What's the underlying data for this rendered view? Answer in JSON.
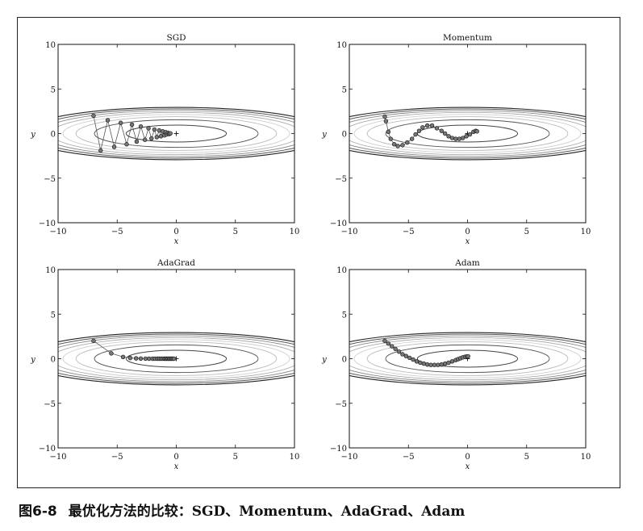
{
  "figure": {
    "number": "图6-8",
    "caption": "最优化方法的比较：SGD、Momentum、AdaGrad、Adam"
  },
  "chart_data": [
    {
      "type": "line",
      "title": "SGD",
      "xlabel": "x",
      "ylabel": "y",
      "xlim": [
        -10,
        10
      ],
      "ylim": [
        -10,
        10
      ],
      "xticks": [
        "−10",
        "−5",
        "0",
        "5",
        "10"
      ],
      "yticks": [
        "10",
        "5",
        "0",
        "−5",
        "−10"
      ],
      "grid": false,
      "contour": "f(x,y)=x^2/20+y^2, minimum at (0,0)",
      "marker": "+",
      "series": [
        {
          "x": [
            -7.0,
            -6.4,
            -5.8,
            -5.25,
            -4.7,
            -4.2,
            -3.75,
            -3.35,
            -3.0,
            -2.65,
            -2.35,
            -2.1,
            -1.85,
            -1.65,
            -1.45,
            -1.3,
            -1.15,
            -1.0,
            -0.9,
            -0.8,
            -0.7,
            -0.6,
            -0.5
          ],
          "y": [
            2.0,
            -1.9,
            1.5,
            -1.5,
            1.2,
            -1.2,
            1.0,
            -0.9,
            0.8,
            -0.7,
            0.6,
            -0.55,
            0.45,
            -0.4,
            0.35,
            -0.3,
            0.25,
            -0.2,
            0.15,
            -0.1,
            0.08,
            -0.05,
            0.02
          ]
        }
      ]
    },
    {
      "type": "line",
      "title": "Momentum",
      "xlabel": "x",
      "ylabel": "y",
      "xlim": [
        -10,
        10
      ],
      "ylim": [
        -10,
        10
      ],
      "xticks": [
        "−10",
        "−5",
        "0",
        "5",
        "10"
      ],
      "yticks": [
        "10",
        "5",
        "0",
        "−5",
        "−10"
      ],
      "grid": false,
      "contour": "f(x,y)=x^2/20+y^2, minimum at (0,0)",
      "marker": "+",
      "series": [
        {
          "x": [
            -7.0,
            -6.9,
            -6.7,
            -6.5,
            -6.2,
            -5.9,
            -5.5,
            -5.1,
            -4.7,
            -4.4,
            -4.1,
            -3.8,
            -3.4,
            -3.0,
            -2.6,
            -2.2,
            -1.9,
            -1.6,
            -1.3,
            -1.0,
            -0.7,
            -0.4,
            -0.1,
            0.2,
            0.5,
            0.7,
            0.8
          ],
          "y": [
            1.9,
            1.4,
            0.2,
            -0.6,
            -1.2,
            -1.4,
            -1.3,
            -1.0,
            -0.6,
            -0.1,
            0.3,
            0.7,
            0.9,
            0.9,
            0.6,
            0.3,
            0.0,
            -0.3,
            -0.5,
            -0.6,
            -0.6,
            -0.5,
            -0.3,
            -0.1,
            0.2,
            0.3,
            0.25
          ]
        }
      ]
    },
    {
      "type": "line",
      "title": "AdaGrad",
      "xlabel": "x",
      "ylabel": "y",
      "xlim": [
        -10,
        10
      ],
      "ylim": [
        -10,
        10
      ],
      "xticks": [
        "−10",
        "−5",
        "0",
        "5",
        "10"
      ],
      "yticks": [
        "10",
        "5",
        "0",
        "−5",
        "−10"
      ],
      "grid": false,
      "contour": "f(x,y)=x^2/20+y^2, minimum at (0,0)",
      "marker": "+",
      "series": [
        {
          "x": [
            -7.0,
            -5.5,
            -4.5,
            -3.9,
            -3.4,
            -3.0,
            -2.6,
            -2.3,
            -2.0,
            -1.8,
            -1.6,
            -1.45,
            -1.3,
            -1.15,
            -1.0,
            -0.9,
            -0.8,
            -0.7,
            -0.6,
            -0.5,
            -0.4,
            -0.3,
            -0.2
          ],
          "y": [
            2.0,
            0.6,
            0.2,
            0.08,
            0.04,
            0.02,
            0.01,
            0.0,
            0.0,
            0.0,
            0.0,
            0.0,
            0.0,
            0.0,
            0.0,
            0.0,
            0.0,
            0.0,
            0.0,
            0.0,
            0.0,
            0.0,
            0.0
          ]
        }
      ]
    },
    {
      "type": "line",
      "title": "Adam",
      "xlabel": "x",
      "ylabel": "y",
      "xlim": [
        -10,
        10
      ],
      "ylim": [
        -10,
        10
      ],
      "xticks": [
        "−10",
        "−5",
        "0",
        "5",
        "10"
      ],
      "yticks": [
        "10",
        "5",
        "0",
        "−5",
        "−10"
      ],
      "grid": false,
      "contour": "f(x,y)=x^2/20+y^2, minimum at (0,0)",
      "marker": "+",
      "series": [
        {
          "x": [
            -7.0,
            -6.7,
            -6.4,
            -6.1,
            -5.8,
            -5.5,
            -5.2,
            -4.9,
            -4.6,
            -4.3,
            -4.0,
            -3.7,
            -3.4,
            -3.1,
            -2.8,
            -2.5,
            -2.2,
            -1.9,
            -1.6,
            -1.3,
            -1.0,
            -0.8,
            -0.6,
            -0.4,
            -0.2,
            -0.05,
            0.05
          ],
          "y": [
            2.0,
            1.7,
            1.4,
            1.1,
            0.8,
            0.5,
            0.3,
            0.1,
            -0.1,
            -0.3,
            -0.45,
            -0.55,
            -0.65,
            -0.7,
            -0.7,
            -0.7,
            -0.65,
            -0.55,
            -0.45,
            -0.3,
            -0.15,
            -0.05,
            0.05,
            0.15,
            0.22,
            0.25,
            0.27
          ]
        }
      ]
    }
  ]
}
